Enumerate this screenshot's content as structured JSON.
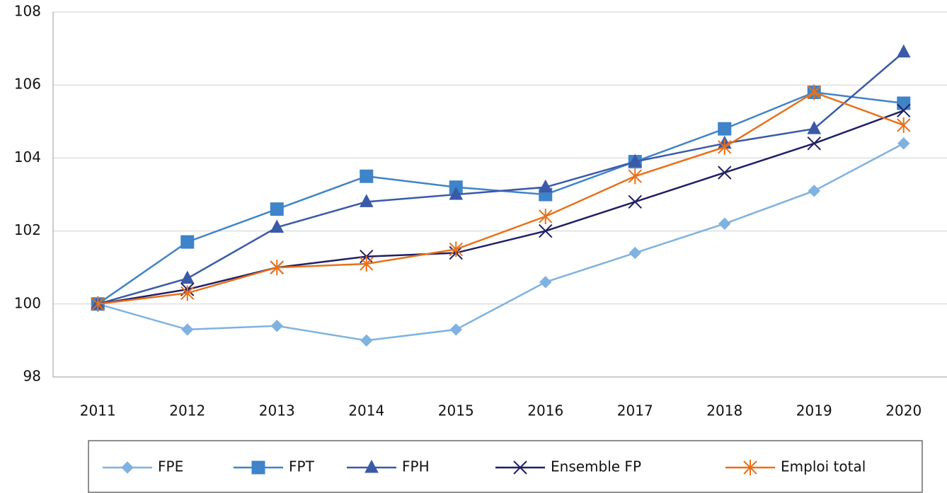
{
  "chart_data": {
    "type": "line",
    "categories": [
      "2011",
      "2012",
      "2013",
      "2014",
      "2015",
      "2016",
      "2017",
      "2018",
      "2019",
      "2020"
    ],
    "series": [
      {
        "name": "FPE",
        "color": "#7fb2e0",
        "marker": "diamond",
        "values": [
          100,
          99.3,
          99.4,
          99.0,
          99.3,
          100.6,
          101.4,
          102.2,
          103.1,
          104.4
        ]
      },
      {
        "name": "FPT",
        "color": "#3f83c8",
        "marker": "square",
        "values": [
          100,
          101.7,
          102.6,
          103.5,
          103.2,
          103.0,
          103.9,
          104.8,
          105.8,
          105.5
        ]
      },
      {
        "name": "FPH",
        "color": "#3a5aa8",
        "marker": "triangle",
        "values": [
          100,
          100.7,
          102.1,
          102.8,
          103.0,
          103.2,
          103.9,
          104.4,
          104.8,
          106.9
        ]
      },
      {
        "name": "Ensemble FP",
        "color": "#1f1f66",
        "marker": "x",
        "values": [
          100,
          100.4,
          101.0,
          101.3,
          101.4,
          102.0,
          102.8,
          103.6,
          104.4,
          105.3
        ]
      },
      {
        "name": "Emploi total",
        "color": "#e8711a",
        "marker": "asterisk",
        "values": [
          100,
          100.3,
          101.0,
          101.1,
          101.5,
          102.4,
          103.5,
          104.3,
          105.8,
          104.9
        ]
      }
    ],
    "ylim": [
      98,
      108
    ],
    "yticks": [
      98,
      100,
      102,
      104,
      106,
      108
    ],
    "grid": true,
    "legend": "bottom"
  }
}
